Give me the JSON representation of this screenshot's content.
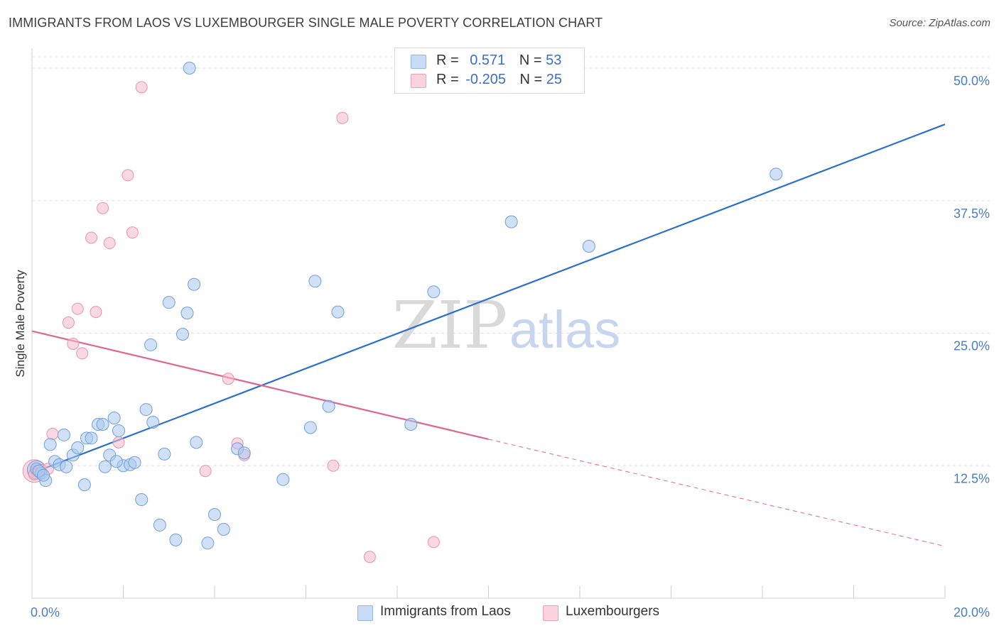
{
  "header": {
    "title": "IMMIGRANTS FROM LAOS VS LUXEMBOURGER SINGLE MALE POVERTY CORRELATION CHART",
    "source": "Source: ZipAtlas.com"
  },
  "watermark": {
    "zip": "ZIP",
    "atlas": "atlas"
  },
  "legend_top": {
    "rows": [
      {
        "r_label": "R =",
        "r_value": "0.571",
        "n_label": "N =",
        "n_value": "53",
        "color": "#a9c8f0"
      },
      {
        "r_label": "R =",
        "r_value": "-0.205",
        "n_label": "N =",
        "n_value": "25",
        "color": "#f6b8cb"
      }
    ]
  },
  "legend_bottom": {
    "items": [
      {
        "label": "Immigrants from Laos",
        "color": "#a9c8f0"
      },
      {
        "label": "Luxembourgers",
        "color": "#f6b8cb"
      }
    ]
  },
  "chart_data": {
    "type": "scatter",
    "title": "IMMIGRANTS FROM LAOS VS LUXEMBOURGER SINGLE MALE POVERTY CORRELATION CHART",
    "xlabel": "",
    "ylabel": "Single Male Poverty",
    "xlim": [
      0,
      20
    ],
    "ylim": [
      0,
      50
    ],
    "x_tick_labels": [
      "0.0%",
      "20.0%"
    ],
    "y_ticks": [
      12.5,
      25,
      37.5,
      50
    ],
    "y_tick_labels": [
      "12.5%",
      "25.0%",
      "37.5%",
      "50.0%"
    ],
    "grid": true,
    "legend_position": "top-center",
    "colors": {
      "blue_point": "#a9c8f0",
      "blue_stroke": "#6e9fdc",
      "blue_line": "#2b6fce",
      "pink_point": "#f6b8cb",
      "pink_stroke": "#e893ad",
      "pink_line": "#e06690"
    },
    "series": [
      {
        "name": "Immigrants from Laos",
        "r": 0.571,
        "n": 53,
        "trend": {
          "x0": 0,
          "y0": 11.8,
          "x1": 20,
          "y1": 44.7
        },
        "points": [
          [
            0.1,
            12.2
          ],
          [
            0.2,
            11.8
          ],
          [
            0.3,
            11.1
          ],
          [
            0.4,
            14.5
          ],
          [
            0.5,
            12.9
          ],
          [
            0.6,
            12.6
          ],
          [
            0.7,
            15.4
          ],
          [
            0.75,
            12.4
          ],
          [
            0.9,
            13.5
          ],
          [
            1.0,
            14.2
          ],
          [
            1.15,
            10.7
          ],
          [
            1.2,
            15.1
          ],
          [
            1.3,
            15.1
          ],
          [
            1.45,
            16.4
          ],
          [
            1.55,
            16.4
          ],
          [
            1.6,
            12.4
          ],
          [
            1.7,
            13.5
          ],
          [
            1.8,
            17.0
          ],
          [
            1.9,
            15.8
          ],
          [
            2.0,
            12.5
          ],
          [
            2.15,
            12.6
          ],
          [
            2.25,
            12.8
          ],
          [
            2.4,
            9.3
          ],
          [
            2.5,
            17.8
          ],
          [
            2.6,
            23.9
          ],
          [
            2.65,
            16.6
          ],
          [
            2.8,
            6.9
          ],
          [
            2.9,
            13.6
          ],
          [
            3.0,
            27.9
          ],
          [
            3.15,
            5.5
          ],
          [
            3.3,
            24.9
          ],
          [
            3.4,
            26.9
          ],
          [
            3.45,
            50.0
          ],
          [
            3.55,
            29.6
          ],
          [
            3.6,
            14.7
          ],
          [
            3.85,
            5.2
          ],
          [
            4.0,
            7.9
          ],
          [
            4.2,
            6.5
          ],
          [
            4.5,
            14.1
          ],
          [
            4.65,
            13.7
          ],
          [
            5.5,
            11.2
          ],
          [
            6.1,
            16.1
          ],
          [
            6.2,
            29.9
          ],
          [
            6.5,
            18.1
          ],
          [
            6.7,
            27.0
          ],
          [
            8.3,
            16.4
          ],
          [
            8.8,
            28.9
          ],
          [
            10.5,
            35.5
          ],
          [
            12.2,
            33.2
          ],
          [
            16.3,
            40.0
          ],
          [
            0.15,
            12.0
          ],
          [
            0.25,
            11.6
          ],
          [
            1.85,
            12.9
          ]
        ]
      },
      {
        "name": "Luxembourgers",
        "r": -0.205,
        "n": 25,
        "trend": {
          "x0": 0,
          "y0": 25.2,
          "x1": 10,
          "y1": 15.0,
          "dashed_to": {
            "x": 20,
            "y": 4.9
          }
        },
        "points": [
          [
            0.1,
            12.0
          ],
          [
            0.2,
            12.1
          ],
          [
            0.35,
            12.2
          ],
          [
            0.45,
            15.5
          ],
          [
            0.8,
            26.0
          ],
          [
            0.9,
            24.0
          ],
          [
            1.0,
            27.3
          ],
          [
            1.1,
            23.1
          ],
          [
            1.3,
            34.0
          ],
          [
            1.4,
            27.0
          ],
          [
            1.55,
            36.8
          ],
          [
            1.7,
            33.5
          ],
          [
            1.9,
            14.7
          ],
          [
            2.1,
            39.9
          ],
          [
            2.2,
            34.5
          ],
          [
            2.4,
            48.2
          ],
          [
            3.8,
            12.0
          ],
          [
            4.3,
            20.7
          ],
          [
            4.5,
            14.6
          ],
          [
            4.65,
            13.5
          ],
          [
            6.6,
            12.5
          ],
          [
            6.8,
            45.3
          ],
          [
            7.4,
            3.9
          ],
          [
            8.8,
            5.3
          ],
          [
            0.05,
            11.7
          ]
        ]
      }
    ]
  }
}
